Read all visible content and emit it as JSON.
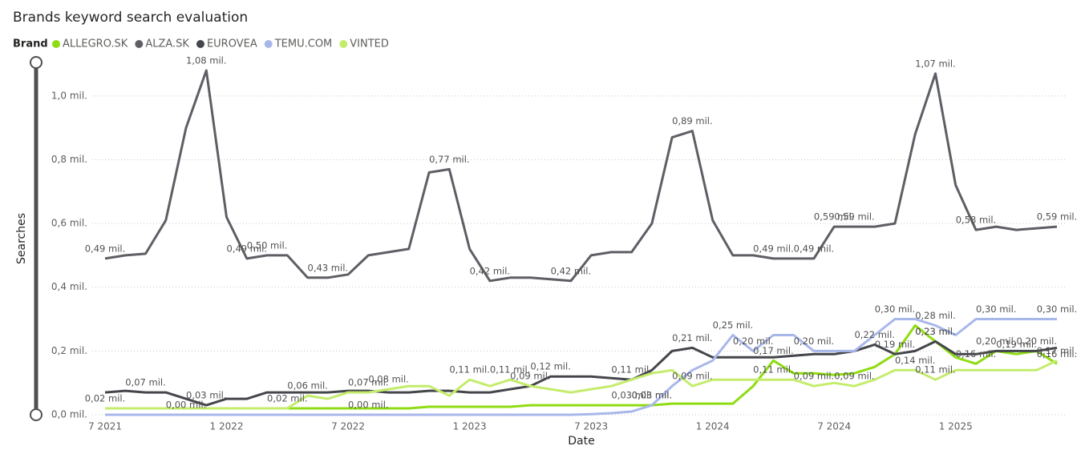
{
  "chart_data": {
    "type": "line",
    "title": "Brands keyword search evaluation",
    "legend_title": "Brand",
    "x_label": "Date",
    "y_label": "Searches",
    "grid": true,
    "x": [
      "2021-07",
      "2021-08",
      "2021-09",
      "2021-10",
      "2021-11",
      "2021-12",
      "2022-01",
      "2022-02",
      "2022-03",
      "2022-04",
      "2022-05",
      "2022-06",
      "2022-07",
      "2022-08",
      "2022-09",
      "2022-10",
      "2022-11",
      "2022-12",
      "2023-01",
      "2023-02",
      "2023-03",
      "2023-04",
      "2023-05",
      "2023-06",
      "2023-07",
      "2023-08",
      "2023-09",
      "2023-10",
      "2023-11",
      "2023-12",
      "2024-01",
      "2024-02",
      "2024-03",
      "2024-04",
      "2024-05",
      "2024-06",
      "2024-07",
      "2024-08",
      "2024-09",
      "2024-10",
      "2024-11",
      "2024-12",
      "2025-01",
      "2025-02",
      "2025-03",
      "2025-04",
      "2025-05",
      "2025-06"
    ],
    "xticks": [
      {
        "value": "2021-07",
        "label": "7 2021"
      },
      {
        "value": "2022-01",
        "label": "1 2022"
      },
      {
        "value": "2022-07",
        "label": "7 2022"
      },
      {
        "value": "2023-01",
        "label": "1 2023"
      },
      {
        "value": "2023-07",
        "label": "7 2023"
      },
      {
        "value": "2024-01",
        "label": "1 2024"
      },
      {
        "value": "2024-07",
        "label": "7 2024"
      },
      {
        "value": "2025-01",
        "label": "1 2025"
      }
    ],
    "ylim": [
      0,
      1.1
    ],
    "yticks": [
      {
        "value": 0,
        "label": "0,0 mil."
      },
      {
        "value": 0.2,
        "label": "0,2 mil."
      },
      {
        "value": 0.4,
        "label": "0,4 mil."
      },
      {
        "value": 0.6,
        "label": "0,6 mil."
      },
      {
        "value": 0.8,
        "label": "0,8 mil."
      },
      {
        "value": 1.0,
        "label": "1,0 mil."
      }
    ],
    "series": [
      {
        "name": "ALLEGRO.SK",
        "color": "#8fdc12",
        "values": [
          0.02,
          0.02,
          0.02,
          0.02,
          0.02,
          0.02,
          0.02,
          0.02,
          0.02,
          0.02,
          0.02,
          0.02,
          0.02,
          0.02,
          0.02,
          0.02,
          0.025,
          0.025,
          0.025,
          0.025,
          0.025,
          0.03,
          0.03,
          0.03,
          0.03,
          0.03,
          0.03,
          0.03,
          0.035,
          0.035,
          0.035,
          0.035,
          0.09,
          0.17,
          0.13,
          0.13,
          0.125,
          0.13,
          0.15,
          0.19,
          0.28,
          0.23,
          0.18,
          0.16,
          0.2,
          0.19,
          0.2,
          0.16
        ],
        "value_labels": [
          "0,02 mil.",
          null,
          null,
          null,
          null,
          null,
          null,
          null,
          null,
          "0,02 mil.",
          null,
          null,
          null,
          null,
          null,
          null,
          null,
          null,
          null,
          null,
          null,
          null,
          null,
          null,
          null,
          null,
          "0,03 mil.",
          "0,03 mil.",
          null,
          null,
          null,
          null,
          null,
          "0,17 mil.",
          null,
          null,
          null,
          null,
          null,
          "0,19 mil.",
          null,
          "0,23 mil.",
          null,
          "0,16 mil.",
          null,
          "0,19 mil.",
          null,
          "0,16 mil."
        ]
      },
      {
        "name": "ALZA.SK",
        "color": "#5d5f64",
        "values": [
          0.49,
          0.5,
          0.505,
          0.61,
          0.9,
          1.08,
          0.62,
          0.49,
          0.5,
          0.5,
          0.43,
          0.43,
          0.44,
          0.5,
          0.51,
          0.52,
          0.76,
          0.77,
          0.52,
          0.42,
          0.43,
          0.43,
          0.425,
          0.42,
          0.5,
          0.51,
          0.51,
          0.6,
          0.87,
          0.89,
          0.61,
          0.5,
          0.5,
          0.49,
          0.49,
          0.49,
          0.59,
          0.59,
          0.59,
          0.6,
          0.88,
          1.07,
          0.72,
          0.58,
          0.59,
          0.58,
          0.585,
          0.59
        ],
        "value_labels": [
          "0,49 mil.",
          null,
          null,
          null,
          null,
          "1,08 mil.",
          null,
          "0,49 mil.",
          "0,50 mil.",
          null,
          null,
          "0,43 mil.",
          null,
          null,
          null,
          null,
          null,
          "0,77 mil.",
          null,
          "0,42 mil.",
          null,
          null,
          null,
          "0,42 mil.",
          null,
          null,
          null,
          null,
          null,
          "0,89 mil.",
          null,
          null,
          null,
          "0,49 mil.",
          null,
          "0,49 mil.",
          "0,59 mil.",
          "0,59 mil.",
          null,
          null,
          null,
          "1,07 mil.",
          null,
          "0,58 mil.",
          null,
          null,
          null,
          "0,59 mil."
        ]
      },
      {
        "name": "EUROVEA",
        "color": "#44464b",
        "values": [
          0.07,
          0.075,
          0.07,
          0.07,
          0.05,
          0.03,
          0.05,
          0.05,
          0.07,
          0.07,
          0.07,
          0.07,
          0.075,
          0.075,
          0.07,
          0.07,
          0.075,
          0.075,
          0.07,
          0.07,
          0.08,
          0.09,
          0.12,
          0.12,
          0.12,
          0.115,
          0.11,
          0.14,
          0.2,
          0.21,
          0.18,
          0.18,
          0.18,
          0.18,
          0.185,
          0.19,
          0.19,
          0.2,
          0.22,
          0.19,
          0.2,
          0.23,
          0.19,
          0.19,
          0.2,
          0.2,
          0.2,
          0.21
        ],
        "value_labels": [
          null,
          null,
          "0,07 mil.",
          null,
          null,
          "0,03 mil.",
          null,
          null,
          null,
          null,
          null,
          null,
          null,
          null,
          null,
          null,
          null,
          null,
          null,
          null,
          null,
          "0,09 mil.",
          "0,12 mil.",
          null,
          null,
          null,
          "0,11 mil.",
          null,
          null,
          "0,21 mil.",
          null,
          null,
          null,
          null,
          null,
          null,
          null,
          null,
          "0,22 mil.",
          null,
          null,
          "0,23 mil.",
          null,
          null,
          "0,20 mil.",
          null,
          "0,20 mil.",
          null
        ]
      },
      {
        "name": "TEMU.COM",
        "color": "#a8b7ea",
        "values": [
          0,
          0,
          0,
          0,
          0,
          0,
          0,
          0,
          0,
          0,
          0,
          0,
          0,
          0,
          0,
          0,
          0,
          0,
          0,
          0,
          0,
          0,
          0,
          0,
          0.002,
          0.005,
          0.01,
          0.03,
          0.09,
          0.14,
          0.17,
          0.25,
          0.2,
          0.25,
          0.25,
          0.2,
          0.2,
          0.2,
          0.25,
          0.3,
          0.3,
          0.28,
          0.25,
          0.3,
          0.3,
          0.3,
          0.3,
          0.3
        ],
        "value_labels": [
          null,
          null,
          null,
          null,
          "0,00 mil.",
          null,
          null,
          null,
          null,
          null,
          null,
          null,
          null,
          "0,00 mil.",
          null,
          null,
          null,
          null,
          null,
          null,
          null,
          null,
          null,
          null,
          null,
          null,
          null,
          "0,03 mil.",
          null,
          null,
          null,
          "0,25 mil.",
          "0,20 mil.",
          null,
          null,
          "0,20 mil.",
          null,
          null,
          null,
          "0,30 mil.",
          null,
          "0,28 mil.",
          null,
          null,
          "0,30 mil.",
          null,
          null,
          "0,30 mil."
        ]
      },
      {
        "name": "VINTED",
        "color": "#c4ec6c",
        "values": [
          0.02,
          0.02,
          0.02,
          0.02,
          0.02,
          0.02,
          0.02,
          0.02,
          0.02,
          0.02,
          0.06,
          0.05,
          0.07,
          0.07,
          0.08,
          0.09,
          0.09,
          0.06,
          0.11,
          0.09,
          0.11,
          0.09,
          0.08,
          0.07,
          0.08,
          0.09,
          0.11,
          0.13,
          0.14,
          0.09,
          0.11,
          0.11,
          0.11,
          0.11,
          0.11,
          0.09,
          0.1,
          0.09,
          0.11,
          0.14,
          0.14,
          0.11,
          0.14,
          0.14,
          0.14,
          0.14,
          0.14,
          0.17
        ],
        "value_labels": [
          null,
          null,
          null,
          null,
          null,
          null,
          null,
          null,
          null,
          null,
          "0,06 mil.",
          null,
          null,
          "0,07 mil.",
          "0,08 mil.",
          null,
          null,
          null,
          "0,11 mil.",
          null,
          "0,11 mil.",
          null,
          null,
          null,
          null,
          null,
          null,
          null,
          null,
          "0,09 mil.",
          null,
          null,
          null,
          "0,11 mil.",
          null,
          "0,09 mil.",
          null,
          "0,09 mil.",
          null,
          null,
          "0,14 mil.",
          "0,11 mil.",
          null,
          null,
          null,
          null,
          null,
          "0,17 mil."
        ]
      }
    ]
  }
}
